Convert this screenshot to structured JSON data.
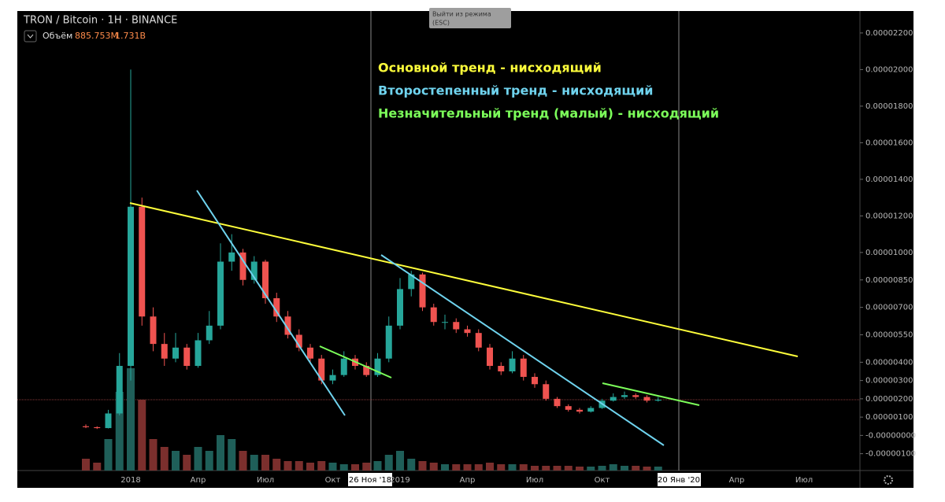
{
  "header": {
    "symbol": "TRON / Bitcoin · 1H · BINANCE",
    "volume_label": "Объём",
    "volume_values": [
      "885.753M",
      "1.731B"
    ]
  },
  "tooltip": [
    "Выйти из режима",
    "(ESC)"
  ],
  "annotations": [
    {
      "text": "Основной тренд - нисходящий",
      "color": "#ffff3b"
    },
    {
      "text": "Второстепенный тренд - нисходящий",
      "color": "#6fd3ee"
    },
    {
      "text": "Незначительный тренд (малый) - нисходящий",
      "color": "#7cff5a"
    }
  ],
  "cursor_labels": [
    "26 Ноя '18",
    "20 Янв '20"
  ],
  "chart_data": {
    "type": "candlestick",
    "categories": [
      null,
      null,
      null,
      null,
      "2018",
      null,
      null,
      null,
      null,
      null,
      "Апр",
      null,
      null,
      null,
      null,
      null,
      "Июл",
      null,
      null,
      null,
      null,
      null,
      "Окт",
      null,
      null,
      null,
      null,
      null,
      "2019",
      null,
      null,
      null,
      null,
      null,
      "Апр",
      null,
      null,
      null,
      null,
      null,
      "Июл",
      null,
      null,
      null,
      null,
      null,
      "Окт",
      null,
      null,
      null,
      null,
      null,
      null,
      null,
      null,
      null,
      null,
      null,
      "Апр",
      null,
      null,
      null,
      null,
      null,
      "Июл",
      null
    ],
    "open": [
      5e-07,
      4.5e-07,
      4e-07,
      1.2e-06,
      3.8e-06,
      1.25e-05,
      6.5e-06,
      5e-06,
      4.2e-06,
      4.8e-06,
      3.8e-06,
      5.2e-06,
      6e-06,
      9.5e-06,
      1e-05,
      8.5e-06,
      9.5e-06,
      7.5e-06,
      6.5e-06,
      5.5e-06,
      4.8e-06,
      4.2e-06,
      3e-06,
      3.3e-06,
      4.2e-06,
      3.8e-06,
      3.3e-06,
      4.2e-06,
      6e-06,
      8e-06,
      8.8e-06,
      7e-06,
      6.2e-06,
      6.2e-06,
      5.8e-06,
      5.6e-06,
      4.8e-06,
      3.8e-06,
      3.5e-06,
      4.2e-06,
      3.2e-06,
      2.8e-06,
      2e-06,
      1.6e-06,
      1.4e-06,
      1.3e-06,
      1.5e-06,
      1.9e-06,
      2.1e-06,
      2.2e-06,
      2.1e-06,
      1.9e-06,
      null,
      null,
      null,
      null,
      null,
      null,
      null,
      null,
      null,
      null,
      null,
      null,
      null,
      null
    ],
    "high": [
      6e-07,
      5e-07,
      1.4e-06,
      4.5e-06,
      2e-05,
      1.3e-05,
      7e-06,
      5.6e-06,
      5.6e-06,
      5e-06,
      5.6e-06,
      6.8e-06,
      1.05e-05,
      1.1e-05,
      1.02e-05,
      9.8e-06,
      9.6e-06,
      7.8e-06,
      6.8e-06,
      5.8e-06,
      5e-06,
      4.4e-06,
      3.6e-06,
      4.6e-06,
      4.4e-06,
      4e-06,
      4.5e-06,
      6.5e-06,
      8.6e-06,
      9e-06,
      8.9e-06,
      7.2e-06,
      6.6e-06,
      6.4e-06,
      6e-06,
      5.8e-06,
      5e-06,
      4e-06,
      4.6e-06,
      4.4e-06,
      3.4e-06,
      3e-06,
      2.1e-06,
      1.7e-06,
      1.5e-06,
      1.6e-06,
      2e-06,
      2.3e-06,
      2.4e-06,
      2.3e-06,
      2.2e-06,
      2.1e-06,
      null,
      null,
      null,
      null,
      null,
      null,
      null,
      null,
      null,
      null,
      null,
      null,
      null,
      null
    ],
    "low": [
      4e-07,
      3.5e-07,
      3.8e-07,
      1.1e-06,
      3e-06,
      6e-06,
      4.6e-06,
      3.8e-06,
      4e-06,
      3.6e-06,
      3.7e-06,
      5e-06,
      5.8e-06,
      9e-06,
      8.2e-06,
      8.3e-06,
      7.2e-06,
      6.2e-06,
      5.3e-06,
      4.6e-06,
      4e-06,
      2.8e-06,
      2.8e-06,
      3.2e-06,
      3.6e-06,
      3.2e-06,
      3.2e-06,
      4e-06,
      5.8e-06,
      7.6e-06,
      6.8e-06,
      6e-06,
      5.8e-06,
      5.6e-06,
      5.4e-06,
      4.6e-06,
      3.6e-06,
      3.3e-06,
      3.4e-06,
      3e-06,
      2.6e-06,
      1.9e-06,
      1.5e-06,
      1.3e-06,
      1.2e-06,
      1.25e-06,
      1.45e-06,
      1.85e-06,
      2e-06,
      2e-06,
      1.8e-06,
      1.85e-06,
      null,
      null,
      null,
      null,
      null,
      null,
      null,
      null,
      null,
      null,
      null,
      null,
      null,
      null
    ],
    "close": [
      4.5e-07,
      4e-07,
      1.2e-06,
      3.8e-06,
      1.25e-05,
      6.5e-06,
      5e-06,
      4.2e-06,
      4.8e-06,
      3.8e-06,
      5.2e-06,
      6e-06,
      9.5e-06,
      1e-05,
      8.5e-06,
      9.5e-06,
      7.5e-06,
      6.5e-06,
      5.5e-06,
      4.8e-06,
      4.2e-06,
      3e-06,
      3.3e-06,
      4.2e-06,
      3.8e-06,
      3.3e-06,
      4.2e-06,
      6e-06,
      8e-06,
      8.8e-06,
      7e-06,
      6.2e-06,
      6.2e-06,
      5.8e-06,
      5.6e-06,
      4.8e-06,
      3.8e-06,
      3.5e-06,
      4.2e-06,
      3.2e-06,
      2.8e-06,
      2e-06,
      1.6e-06,
      1.4e-06,
      1.3e-06,
      1.5e-06,
      1.9e-06,
      2.1e-06,
      2.2e-06,
      2.1e-06,
      1.9e-06,
      1.95e-06,
      null,
      null,
      null,
      null,
      null,
      null,
      null,
      null,
      null,
      null,
      null,
      null,
      null,
      null
    ],
    "volume": [
      300,
      200,
      800,
      2000,
      2600,
      1800,
      800,
      600,
      500,
      400,
      600,
      500,
      900,
      800,
      500,
      400,
      400,
      300,
      240,
      240,
      200,
      240,
      200,
      160,
      160,
      200,
      240,
      400,
      500,
      300,
      240,
      200,
      160,
      160,
      160,
      160,
      200,
      160,
      160,
      160,
      120,
      120,
      120,
      120,
      100,
      100,
      120,
      160,
      120,
      120,
      100,
      100,
      null,
      null,
      null,
      null,
      null,
      null,
      null,
      null,
      null,
      null,
      null,
      null,
      null,
      null
    ],
    "ylim": [
      -1.92e-06,
      2.32e-05
    ],
    "yticks": [
      {
        "value": 2.2e-05,
        "label": "0.00002200"
      },
      {
        "value": 2e-05,
        "label": "0.00002000"
      },
      {
        "value": 1.8e-05,
        "label": "0.00001800"
      },
      {
        "value": 1.6e-05,
        "label": "0.00001600"
      },
      {
        "value": 1.4e-05,
        "label": "0.00001400"
      },
      {
        "value": 1.2e-05,
        "label": "0.00001200"
      },
      {
        "value": 1e-05,
        "label": "0.00001000"
      },
      {
        "value": 8.5e-06,
        "label": "0.00000850"
      },
      {
        "value": 7e-06,
        "label": "0.00000700"
      },
      {
        "value": 5.5e-06,
        "label": "0.00000550"
      },
      {
        "value": 4e-06,
        "label": "0.00000400"
      },
      {
        "value": 3e-06,
        "label": "0.00000300"
      },
      {
        "value": 2e-06,
        "label": "0.00000200"
      },
      {
        "value": 1e-06,
        "label": "0.00000100"
      },
      {
        "value": 0,
        "label": "-0.00000000"
      },
      {
        "value": -1e-06,
        "label": "-0.00000100"
      }
    ],
    "up_color": "#26a69a",
    "down_color": "#ef5350",
    "up_volume_color": "#1f5f59",
    "down_volume_color": "#7b2f2d"
  }
}
